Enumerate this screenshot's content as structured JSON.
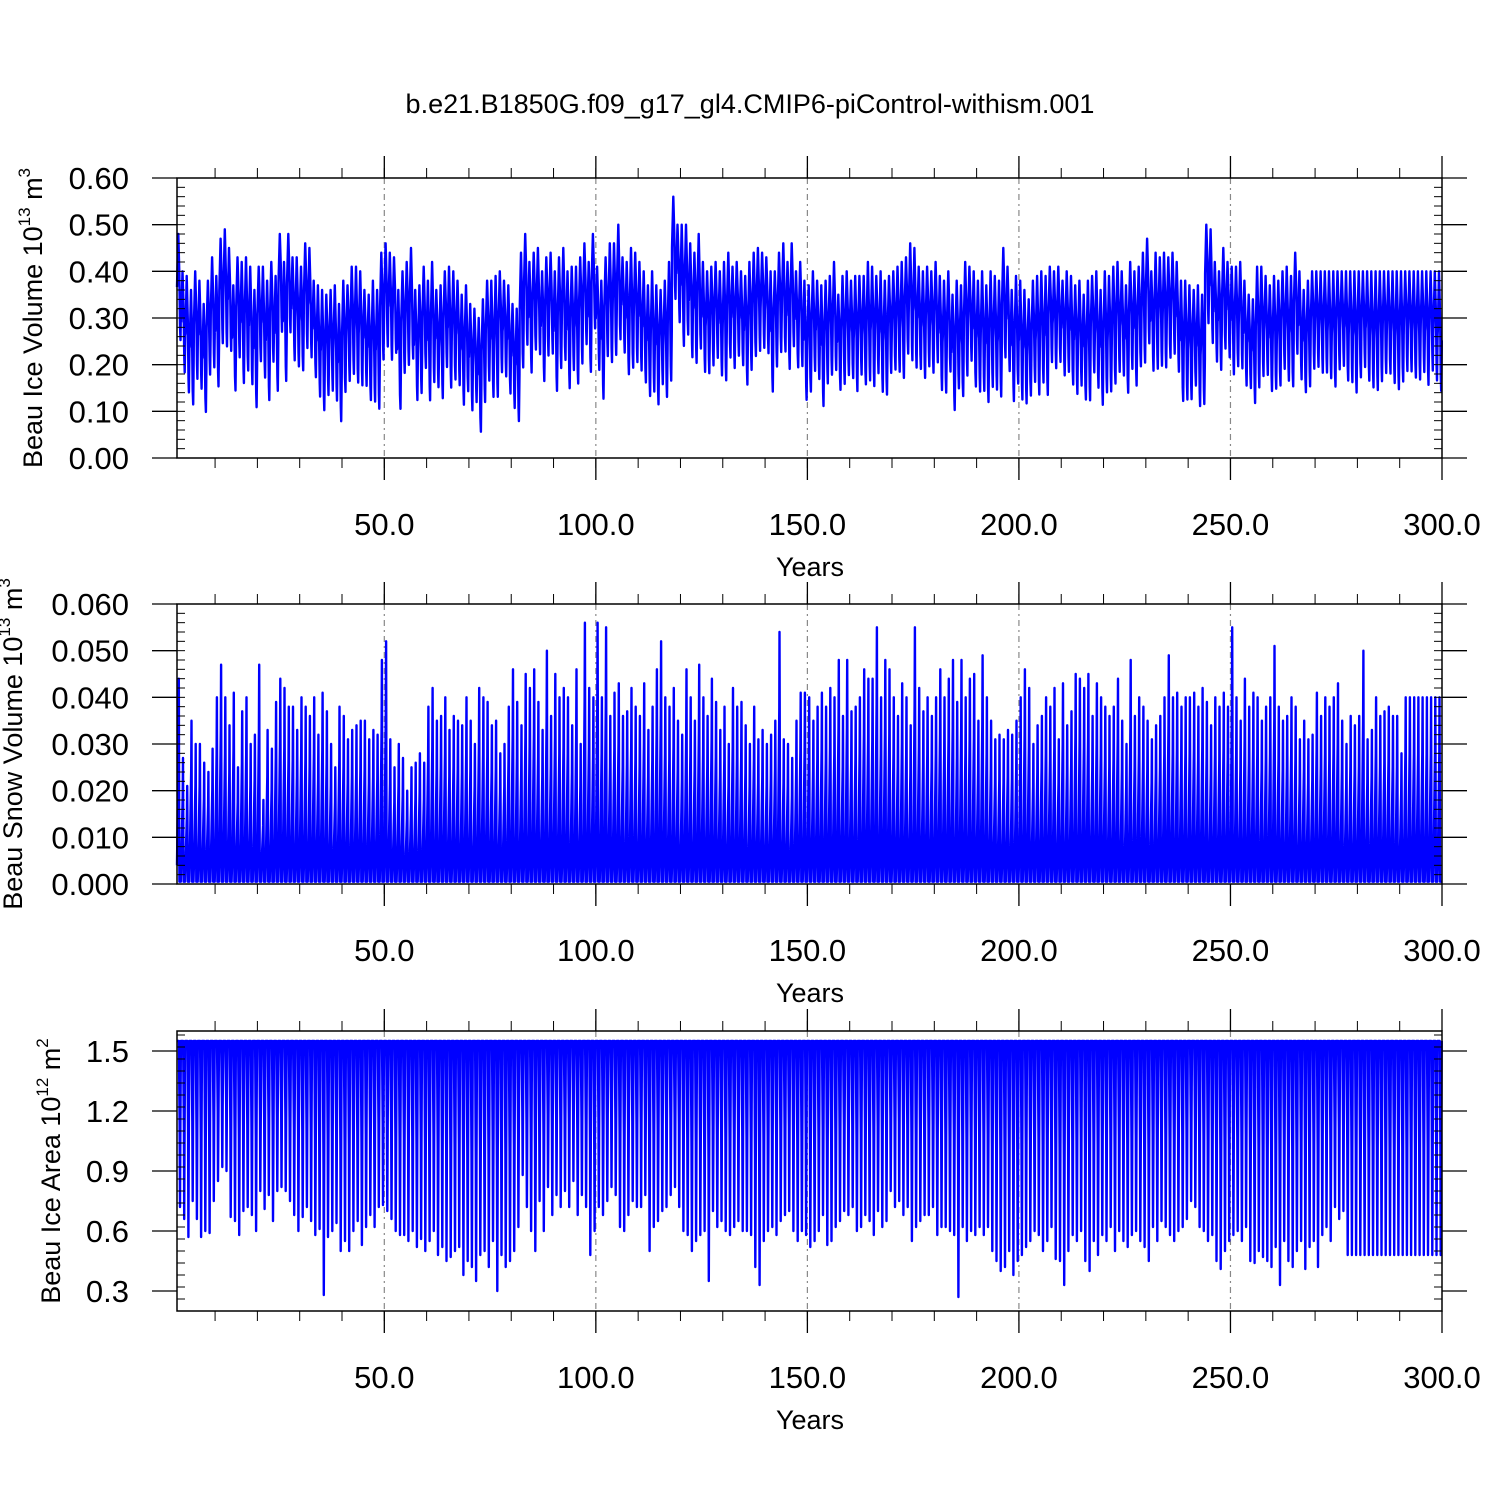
{
  "title": "b.e21.B1850G.f09_g17_gl4.CMIP6-piControl-withism.001",
  "series_color": "#0000ff",
  "chart_data": [
    {
      "type": "line",
      "xlabel": "Years",
      "ylabel": {
        "text": "Beau Ice Volume 10",
        "sup": "13",
        "unit": " m",
        "unit_sup": "3"
      },
      "xlim": [
        1,
        300
      ],
      "ylim": [
        0,
        0.6
      ],
      "x_ticks": [
        50,
        100,
        150,
        200,
        250,
        300
      ],
      "x_tick_labels": [
        "50.0",
        "100.0",
        "150.0",
        "200.0",
        "250.0",
        "300.0"
      ],
      "y_ticks": [
        0,
        0.1,
        0.2,
        0.3,
        0.4,
        0.5,
        0.6
      ],
      "y_tick_labels": [
        "0.00",
        "0.10",
        "0.20",
        "0.30",
        "0.40",
        "0.50",
        "0.60"
      ],
      "grid": "vertical dashed at major x ticks",
      "series": [
        {
          "frequency": "monthly",
          "seasonal_max": [
            0.48,
            0.4,
            0.39,
            0.36,
            0.4,
            0.38,
            0.33,
            0.38,
            0.43,
            0.39,
            0.47,
            0.49,
            0.45,
            0.37,
            0.43,
            0.42,
            0.43,
            0.41,
            0.36,
            0.41,
            0.41,
            0.38,
            0.42,
            0.39,
            0.48,
            0.42,
            0.48,
            0.43,
            0.43,
            0.41,
            0.46,
            0.45,
            0.38,
            0.37,
            0.36,
            0.35,
            0.36,
            0.37,
            0.33,
            0.38,
            0.37,
            0.41,
            0.41,
            0.4,
            0.36,
            0.35,
            0.38,
            0.36,
            0.44,
            0.46,
            0.44,
            0.43,
            0.36,
            0.4,
            0.42,
            0.45,
            0.36,
            0.37,
            0.41,
            0.38,
            0.42,
            0.36,
            0.37,
            0.4,
            0.41,
            0.4,
            0.38,
            0.35,
            0.37,
            0.33,
            0.32,
            0.3,
            0.34,
            0.38,
            0.38,
            0.39,
            0.4,
            0.38,
            0.37,
            0.33,
            0.32,
            0.44,
            0.48,
            0.42,
            0.44,
            0.45,
            0.4,
            0.43,
            0.44,
            0.4,
            0.43,
            0.45,
            0.4,
            0.41,
            0.41,
            0.43,
            0.46,
            0.42,
            0.48,
            0.41,
            0.38,
            0.43,
            0.46,
            0.46,
            0.5,
            0.43,
            0.42,
            0.45,
            0.44,
            0.42,
            0.4,
            0.37,
            0.4,
            0.37,
            0.36,
            0.38,
            0.42,
            0.56,
            0.5,
            0.5,
            0.5,
            0.46,
            0.44,
            0.48,
            0.42,
            0.4,
            0.41,
            0.42,
            0.4,
            0.42,
            0.44,
            0.41,
            0.42,
            0.4,
            0.39,
            0.42,
            0.44,
            0.45,
            0.44,
            0.43,
            0.4,
            0.4,
            0.44,
            0.46,
            0.42,
            0.46,
            0.4,
            0.42,
            0.38,
            0.37,
            0.4,
            0.38,
            0.37,
            0.38,
            0.39,
            0.42,
            0.35,
            0.39,
            0.4,
            0.38,
            0.39,
            0.39,
            0.39,
            0.42,
            0.41,
            0.39,
            0.4,
            0.38,
            0.39,
            0.4,
            0.41,
            0.42,
            0.43,
            0.46,
            0.45,
            0.41,
            0.4,
            0.41,
            0.4,
            0.42,
            0.39,
            0.38,
            0.4,
            0.35,
            0.38,
            0.37,
            0.42,
            0.41,
            0.4,
            0.38,
            0.4,
            0.37,
            0.4,
            0.39,
            0.38,
            0.45,
            0.41,
            0.36,
            0.39,
            0.38,
            0.36,
            0.34,
            0.38,
            0.39,
            0.4,
            0.39,
            0.41,
            0.4,
            0.41,
            0.38,
            0.4,
            0.39,
            0.37,
            0.38,
            0.35,
            0.38,
            0.39,
            0.4,
            0.36,
            0.4,
            0.39,
            0.41,
            0.42,
            0.4,
            0.37,
            0.42,
            0.4,
            0.41,
            0.44,
            0.47,
            0.4,
            0.44,
            0.43,
            0.44,
            0.43,
            0.44,
            0.42,
            0.38,
            0.38,
            0.37,
            0.36,
            0.37,
            0.35,
            0.5,
            0.49,
            0.42,
            0.4,
            0.45,
            0.42,
            0.41,
            0.41,
            0.42,
            0.38,
            0.35,
            0.34,
            0.41,
            0.41,
            0.39,
            0.37,
            0.39,
            0.38,
            0.4,
            0.41,
            0.39,
            0.44,
            0.4,
            0.36,
            0.38,
            0.4
          ]
        }
      ]
    },
    {
      "type": "line",
      "xlabel": "Years",
      "ylabel": {
        "text": "Beau Snow Volume 10",
        "sup": "13",
        "unit": " m",
        "unit_sup": "3"
      },
      "xlim": [
        1,
        300
      ],
      "ylim": [
        0,
        0.06
      ],
      "x_ticks": [
        50,
        100,
        150,
        200,
        250,
        300
      ],
      "x_tick_labels": [
        "50.0",
        "100.0",
        "150.0",
        "200.0",
        "250.0",
        "300.0"
      ],
      "y_ticks": [
        0,
        0.01,
        0.02,
        0.03,
        0.04,
        0.05,
        0.06
      ],
      "y_tick_labels": [
        "0.000",
        "0.010",
        "0.020",
        "0.030",
        "0.040",
        "0.050",
        "0.060"
      ],
      "grid": "vertical dashed at major x ticks",
      "series": [
        {
          "frequency": "monthly",
          "seasonal_max": [
            0.044,
            0.027,
            0.021,
            0.035,
            0.03,
            0.03,
            0.026,
            0.024,
            0.029,
            0.04,
            0.047,
            0.04,
            0.034,
            0.041,
            0.025,
            0.037,
            0.04,
            0.03,
            0.032,
            0.047,
            0.018,
            0.033,
            0.029,
            0.039,
            0.044,
            0.042,
            0.038,
            0.038,
            0.033,
            0.04,
            0.038,
            0.036,
            0.04,
            0.032,
            0.041,
            0.037,
            0.03,
            0.025,
            0.038,
            0.036,
            0.031,
            0.033,
            0.034,
            0.035,
            0.035,
            0.031,
            0.033,
            0.032,
            0.048,
            0.052,
            0.031,
            0.025,
            0.03,
            0.027,
            0.02,
            0.025,
            0.026,
            0.028,
            0.026,
            0.038,
            0.042,
            0.035,
            0.036,
            0.04,
            0.033,
            0.036,
            0.035,
            0.034,
            0.04,
            0.035,
            0.03,
            0.042,
            0.04,
            0.039,
            0.034,
            0.035,
            0.028,
            0.03,
            0.038,
            0.046,
            0.039,
            0.034,
            0.045,
            0.042,
            0.046,
            0.039,
            0.033,
            0.05,
            0.036,
            0.045,
            0.04,
            0.042,
            0.04,
            0.034,
            0.046,
            0.03,
            0.056,
            0.042,
            0.04,
            0.056,
            0.04,
            0.055,
            0.036,
            0.041,
            0.043,
            0.036,
            0.037,
            0.042,
            0.038,
            0.036,
            0.043,
            0.033,
            0.038,
            0.046,
            0.052,
            0.04,
            0.038,
            0.042,
            0.035,
            0.032,
            0.046,
            0.04,
            0.035,
            0.047,
            0.04,
            0.036,
            0.044,
            0.039,
            0.033,
            0.038,
            0.03,
            0.042,
            0.038,
            0.039,
            0.034,
            0.03,
            0.038,
            0.031,
            0.033,
            0.03,
            0.032,
            0.035,
            0.054,
            0.031,
            0.03,
            0.027,
            0.035,
            0.041,
            0.041,
            0.04,
            0.035,
            0.038,
            0.041,
            0.038,
            0.042,
            0.04,
            0.048,
            0.036,
            0.048,
            0.037,
            0.038,
            0.04,
            0.046,
            0.044,
            0.044,
            0.055,
            0.04,
            0.048,
            0.046,
            0.04,
            0.036,
            0.043,
            0.04,
            0.034,
            0.055,
            0.042,
            0.037,
            0.04,
            0.036,
            0.04,
            0.046,
            0.04,
            0.044,
            0.048,
            0.039,
            0.048,
            0.04,
            0.044,
            0.045,
            0.035,
            0.049,
            0.04,
            0.035,
            0.031,
            0.032,
            0.031,
            0.033,
            0.032,
            0.035,
            0.04,
            0.046,
            0.042,
            0.03,
            0.034,
            0.036,
            0.04,
            0.038,
            0.042,
            0.031,
            0.043,
            0.034,
            0.037,
            0.045,
            0.044,
            0.042,
            0.045,
            0.036,
            0.043,
            0.04,
            0.038,
            0.036,
            0.038,
            0.044,
            0.035,
            0.03,
            0.048,
            0.036,
            0.04,
            0.038,
            0.035,
            0.031,
            0.034,
            0.036,
            0.04,
            0.049,
            0.04,
            0.041,
            0.038,
            0.04,
            0.04,
            0.041,
            0.038,
            0.042,
            0.039,
            0.034,
            0.04,
            0.038,
            0.041,
            0.038,
            0.055,
            0.04,
            0.035,
            0.044,
            0.038,
            0.041,
            0.04,
            0.035,
            0.038,
            0.04,
            0.051,
            0.038,
            0.035,
            0.036,
            0.04,
            0.038,
            0.031,
            0.035,
            0.031,
            0.032,
            0.041,
            0.036,
            0.04,
            0.038,
            0.04,
            0.043,
            0.035,
            0.03,
            0.036,
            0.034,
            0.036,
            0.05,
            0.031,
            0.033,
            0.04,
            0.036,
            0.037,
            0.038,
            0.036,
            0.036,
            0.028,
            0.04
          ]
        }
      ]
    },
    {
      "type": "line",
      "xlabel": "Years",
      "ylabel": {
        "text": "Beau Ice Area 10",
        "sup": "12",
        "unit": " m",
        "unit_sup": "2"
      },
      "xlim": [
        1,
        300
      ],
      "ylim": [
        0.2,
        1.6
      ],
      "x_ticks": [
        50,
        100,
        150,
        200,
        250,
        300
      ],
      "x_tick_labels": [
        "50.0",
        "100.0",
        "150.0",
        "200.0",
        "250.0",
        "300.0"
      ],
      "y_ticks": [
        0.3,
        0.6,
        0.9,
        1.2,
        1.5
      ],
      "y_tick_labels": [
        "0.3",
        "0.6",
        "0.9",
        "1.2",
        "1.5"
      ],
      "grid": "vertical dashed at major x ticks",
      "series": [
        {
          "frequency": "monthly",
          "seasonal_max_constant": 1.55,
          "seasonal_min": [
            0.72,
            0.66,
            0.57,
            0.75,
            0.66,
            0.57,
            0.6,
            0.59,
            0.75,
            0.85,
            0.92,
            0.9,
            0.67,
            0.65,
            0.58,
            0.7,
            0.72,
            0.68,
            0.6,
            0.8,
            0.71,
            0.78,
            0.65,
            0.8,
            0.82,
            0.8,
            0.75,
            0.68,
            0.6,
            0.67,
            0.72,
            0.65,
            0.58,
            0.61,
            0.28,
            0.57,
            0.6,
            0.64,
            0.5,
            0.55,
            0.5,
            0.6,
            0.65,
            0.53,
            0.62,
            0.68,
            0.62,
            0.72,
            0.73,
            0.7,
            0.66,
            0.6,
            0.58,
            0.58,
            0.55,
            0.6,
            0.52,
            0.56,
            0.5,
            0.55,
            0.6,
            0.48,
            0.52,
            0.45,
            0.47,
            0.5,
            0.52,
            0.38,
            0.45,
            0.42,
            0.35,
            0.48,
            0.5,
            0.42,
            0.55,
            0.3,
            0.48,
            0.42,
            0.45,
            0.5,
            0.62,
            0.88,
            0.72,
            0.6,
            0.5,
            0.75,
            0.6,
            0.82,
            0.68,
            0.78,
            0.72,
            0.8,
            0.72,
            0.85,
            0.68,
            0.78,
            0.72,
            0.48,
            0.6,
            0.72,
            0.68,
            0.75,
            0.82,
            0.78,
            0.62,
            0.6,
            0.68,
            0.75,
            0.72,
            0.72,
            0.78,
            0.5,
            0.62,
            0.65,
            0.7,
            0.72,
            0.78,
            0.82,
            0.72,
            0.6,
            0.58,
            0.5,
            0.55,
            0.58,
            0.6,
            0.35,
            0.7,
            0.62,
            0.65,
            0.6,
            0.58,
            0.62,
            0.65,
            0.6,
            0.6,
            0.58,
            0.42,
            0.33,
            0.55,
            0.6,
            0.62,
            0.58,
            0.65,
            0.68,
            0.7,
            0.6,
            0.55,
            0.6,
            0.58,
            0.52,
            0.55,
            0.6,
            0.68,
            0.53,
            0.55,
            0.62,
            0.65,
            0.7,
            0.68,
            0.72,
            0.6,
            0.62,
            0.68,
            0.65,
            0.58,
            0.7,
            0.62,
            0.65,
            0.8,
            0.72,
            0.75,
            0.68,
            0.72,
            0.55,
            0.62,
            0.65,
            0.68,
            0.68,
            0.72,
            0.58,
            0.62,
            0.62,
            0.6,
            0.58,
            0.27,
            0.62,
            0.55,
            0.6,
            0.58,
            0.62,
            0.58,
            0.62,
            0.5,
            0.45,
            0.4,
            0.42,
            0.5,
            0.38,
            0.45,
            0.48,
            0.52,
            0.55,
            0.6,
            0.58,
            0.5,
            0.55,
            0.62,
            0.46,
            0.45,
            0.33,
            0.5,
            0.58,
            0.55,
            0.6,
            0.45,
            0.4,
            0.55,
            0.48,
            0.58,
            0.55,
            0.62,
            0.5,
            0.6,
            0.55,
            0.52,
            0.58,
            0.6,
            0.55,
            0.52,
            0.45,
            0.62,
            0.55,
            0.65,
            0.62,
            0.58,
            0.55,
            0.6,
            0.62,
            0.66,
            0.75,
            0.72,
            0.62,
            0.6,
            0.55,
            0.58,
            0.45,
            0.41,
            0.5,
            0.55,
            0.58,
            0.6,
            0.55,
            0.62,
            0.45,
            0.44,
            0.5,
            0.47,
            0.45,
            0.42,
            0.52,
            0.33,
            0.55,
            0.45,
            0.42,
            0.5,
            0.55,
            0.41,
            0.52,
            0.55,
            0.42,
            0.58,
            0.62,
            0.55,
            0.72,
            0.66,
            0.7,
            0.48
          ]
        }
      ]
    }
  ]
}
